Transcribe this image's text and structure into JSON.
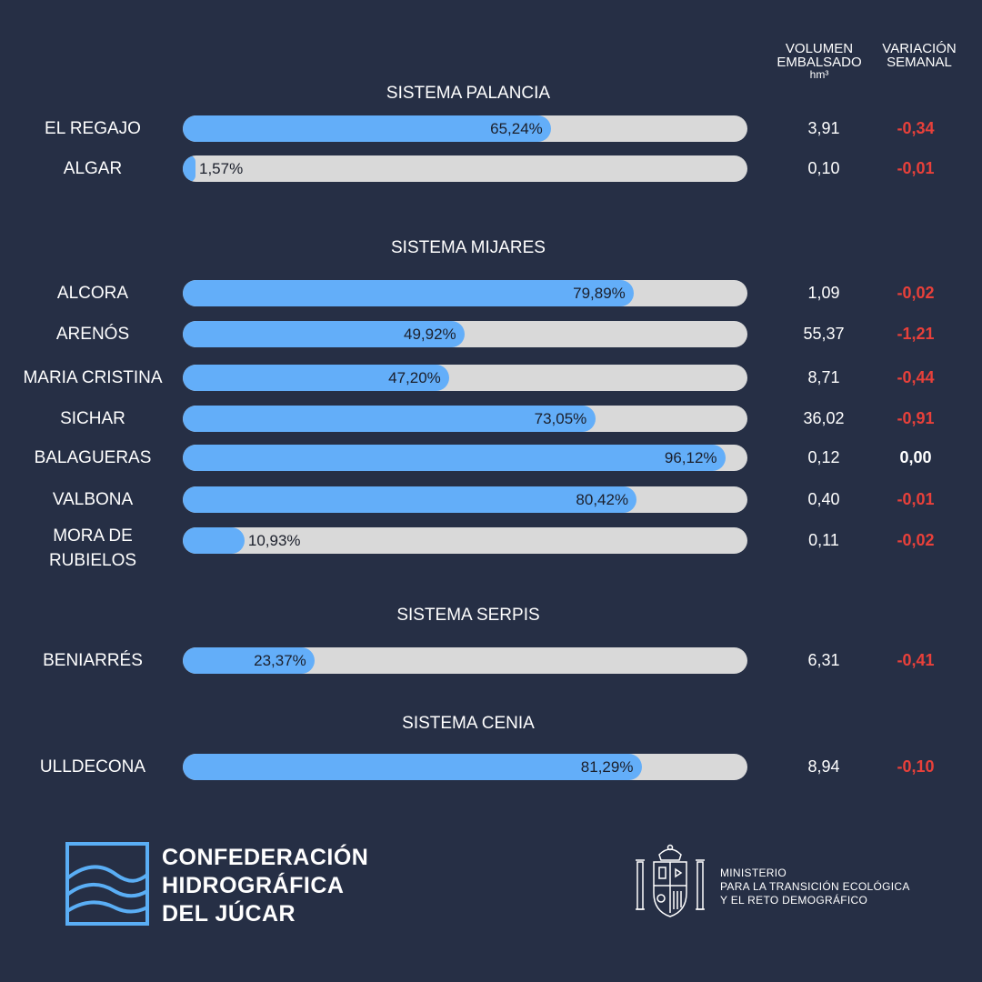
{
  "headers": {
    "volume_line1": "VOLUMEN",
    "volume_line2": "EMBALSADO",
    "volume_unit": "hm³",
    "variation_line1": "VARIACIÓN",
    "variation_line2": "SEMANAL"
  },
  "colors": {
    "background": "#262f45",
    "bar_fill": "#63aef9",
    "bar_track": "#d9d9d9",
    "negative": "#e8403a",
    "neutral": "#ffffff"
  },
  "chart_data": {
    "type": "bar",
    "orientation": "horizontal",
    "unit": "%",
    "xlim": [
      0,
      100
    ],
    "groups": [
      {
        "title": "SISTEMA PALANCIA",
        "reservoirs": [
          {
            "name": "EL REGAJO",
            "pct": 65.24,
            "pct_label": "65,24%",
            "volume": "3,91",
            "variation": "-0,34"
          },
          {
            "name": "ALGAR",
            "pct": 1.57,
            "pct_label": "1,57%",
            "volume": "0,10",
            "variation": "-0,01"
          }
        ]
      },
      {
        "title": "SISTEMA MIJARES",
        "reservoirs": [
          {
            "name": "ALCORA",
            "pct": 79.89,
            "pct_label": "79,89%",
            "volume": "1,09",
            "variation": "-0,02"
          },
          {
            "name": "ARENÓS",
            "pct": 49.92,
            "pct_label": "49,92%",
            "volume": "55,37",
            "variation": "-1,21"
          },
          {
            "name": "MARIA CRISTINA",
            "pct": 47.2,
            "pct_label": "47,20%",
            "volume": "8,71",
            "variation": "-0,44"
          },
          {
            "name": "SICHAR",
            "pct": 73.05,
            "pct_label": "73,05%",
            "volume": "36,02",
            "variation": "-0,91"
          },
          {
            "name": "BALAGUERAS",
            "pct": 96.12,
            "pct_label": "96,12%",
            "volume": "0,12",
            "variation": "0,00"
          },
          {
            "name": "VALBONA",
            "pct": 80.42,
            "pct_label": "80,42%",
            "volume": "0,40",
            "variation": "-0,01"
          },
          {
            "name": "MORA DE RUBIELOS",
            "name_line1": "MORA DE",
            "name_line2": "RUBIELOS",
            "pct": 10.93,
            "pct_label": "10,93%",
            "volume": "0,11",
            "variation": "-0,02"
          }
        ]
      },
      {
        "title": "SISTEMA SERPIS",
        "reservoirs": [
          {
            "name": "BENIARRÉS",
            "pct": 23.37,
            "pct_label": "23,37%",
            "volume": "6,31",
            "variation": "-0,41"
          }
        ]
      },
      {
        "title": "SISTEMA CENIA",
        "reservoirs": [
          {
            "name": "ULLDECONA",
            "pct": 81.29,
            "pct_label": "81,29%",
            "volume": "8,94",
            "variation": "-0,10"
          }
        ]
      }
    ]
  },
  "footer": {
    "chj_line1": "CONFEDERACIÓN",
    "chj_line2": "HIDROGRÁFICA",
    "chj_line3": "DEL JÚCAR",
    "ministry_line1": "MINISTERIO",
    "ministry_line2": "PARA LA TRANSICIÓN ECOLÓGICA",
    "ministry_line3": "Y EL RETO DEMOGRÁFICO"
  }
}
